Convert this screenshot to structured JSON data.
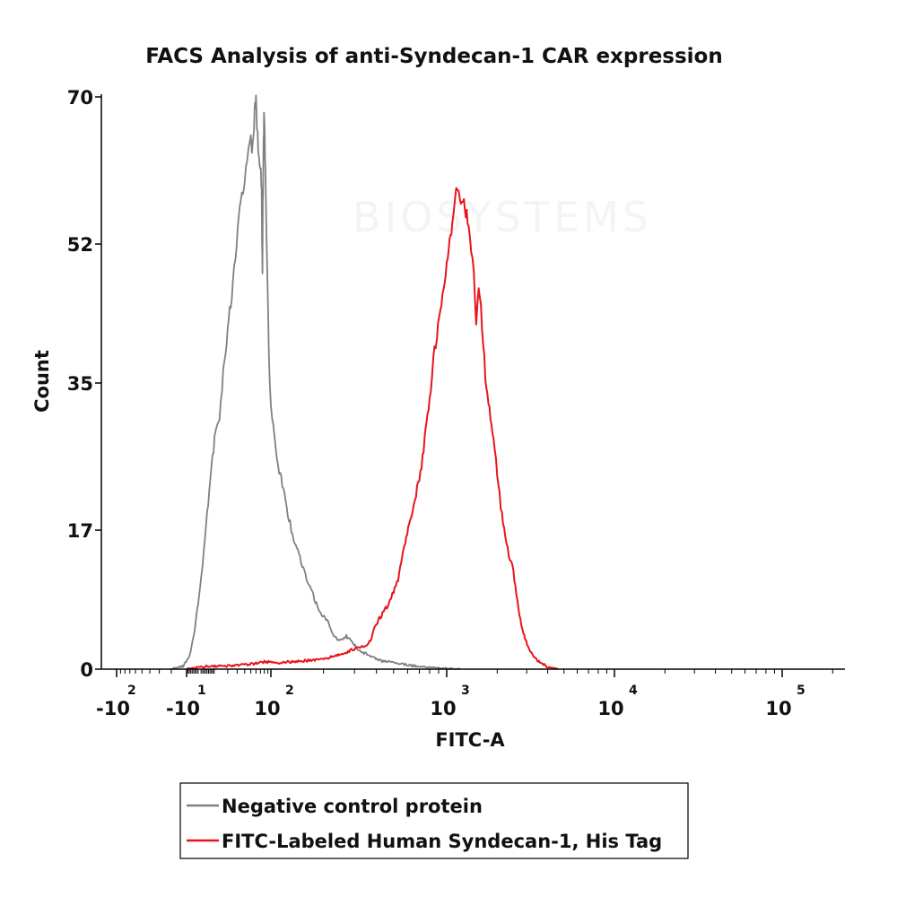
{
  "chart_data": {
    "type": "line",
    "title": "FACS Analysis of anti-Syndecan-1 CAR expression",
    "xlabel": "FITC-A",
    "ylabel": "Count",
    "xscale": "biexponential (logicle)",
    "ylim": [
      0,
      70
    ],
    "y_ticks": [
      "0",
      "17",
      "35",
      "52",
      "70"
    ],
    "x_ticks": [
      {
        "base": "-10",
        "exp": "2",
        "value": -100
      },
      {
        "base": "-10",
        "exp": "1",
        "value": -10
      },
      {
        "base": "10",
        "exp": "2",
        "value": 100
      },
      {
        "base": "10",
        "exp": "3",
        "value": 1000
      },
      {
        "base": "10",
        "exp": "4",
        "value": 10000
      },
      {
        "base": "10",
        "exp": "5",
        "value": 100000
      }
    ],
    "grid": false,
    "legend_position": "bottom",
    "watermark": "BIOSYSTEMS",
    "series": [
      {
        "name": "Negative control protein",
        "color": "#808080",
        "points": [
          [
            -20,
            0
          ],
          [
            -12,
            0.4
          ],
          [
            -8,
            1.5
          ],
          [
            -5,
            4
          ],
          [
            -2,
            8
          ],
          [
            1,
            13
          ],
          [
            4,
            19
          ],
          [
            7,
            25
          ],
          [
            10,
            29
          ],
          [
            13,
            31
          ],
          [
            16,
            36
          ],
          [
            20,
            41
          ],
          [
            24,
            46
          ],
          [
            28,
            50
          ],
          [
            32,
            55
          ],
          [
            36,
            58
          ],
          [
            40,
            60
          ],
          [
            44,
            63
          ],
          [
            48,
            65
          ],
          [
            52,
            64
          ],
          [
            56,
            66
          ],
          [
            58,
            69
          ],
          [
            60,
            70
          ],
          [
            62,
            66
          ],
          [
            65,
            64
          ],
          [
            68,
            62
          ],
          [
            71,
            61
          ],
          [
            73,
            58
          ],
          [
            74,
            53
          ],
          [
            75,
            49
          ],
          [
            76,
            57
          ],
          [
            77,
            60
          ],
          [
            78,
            64
          ],
          [
            79,
            68
          ],
          [
            80,
            67
          ],
          [
            82,
            63
          ],
          [
            84,
            58
          ],
          [
            87,
            52
          ],
          [
            90,
            46
          ],
          [
            93,
            40
          ],
          [
            96,
            35
          ],
          [
            100,
            32
          ],
          [
            105,
            28
          ],
          [
            110,
            25
          ],
          [
            118,
            22
          ],
          [
            125,
            19
          ],
          [
            135,
            16
          ],
          [
            145,
            14
          ],
          [
            160,
            11
          ],
          [
            175,
            9
          ],
          [
            190,
            7
          ],
          [
            210,
            6
          ],
          [
            230,
            4
          ],
          [
            250,
            3.5
          ],
          [
            270,
            4
          ],
          [
            290,
            3.5
          ],
          [
            310,
            2.5
          ],
          [
            340,
            2
          ],
          [
            380,
            1.5
          ],
          [
            430,
            1
          ],
          [
            500,
            0.8
          ],
          [
            600,
            0.5
          ],
          [
            700,
            0.3
          ],
          [
            850,
            0.2
          ],
          [
            1000,
            0.1
          ],
          [
            1200,
            0
          ]
        ]
      },
      {
        "name": "FITC-Labeled Human Syndecan-1, His Tag",
        "color": "#e8141c",
        "points": [
          [
            -10,
            0
          ],
          [
            0,
            0.3
          ],
          [
            20,
            0.4
          ],
          [
            50,
            0.6
          ],
          [
            80,
            0.9
          ],
          [
            110,
            0.8
          ],
          [
            150,
            1
          ],
          [
            200,
            1.2
          ],
          [
            250,
            1.8
          ],
          [
            300,
            2.5
          ],
          [
            340,
            2.8
          ],
          [
            370,
            3.5
          ],
          [
            390,
            5
          ],
          [
            410,
            6
          ],
          [
            440,
            7
          ],
          [
            470,
            8
          ],
          [
            500,
            9.5
          ],
          [
            530,
            11
          ],
          [
            560,
            14
          ],
          [
            590,
            16
          ],
          [
            620,
            18
          ],
          [
            650,
            20
          ],
          [
            680,
            22
          ],
          [
            720,
            25
          ],
          [
            760,
            29
          ],
          [
            800,
            33
          ],
          [
            840,
            38
          ],
          [
            880,
            41
          ],
          [
            920,
            44
          ],
          [
            960,
            46
          ],
          [
            1000,
            49
          ],
          [
            1040,
            52
          ],
          [
            1080,
            55
          ],
          [
            1120,
            57
          ],
          [
            1160,
            59
          ],
          [
            1200,
            58
          ],
          [
            1250,
            57
          ],
          [
            1300,
            56
          ],
          [
            1350,
            54
          ],
          [
            1400,
            51
          ],
          [
            1450,
            48
          ],
          [
            1500,
            43
          ],
          [
            1550,
            46
          ],
          [
            1600,
            44
          ],
          [
            1650,
            40
          ],
          [
            1700,
            36
          ],
          [
            1800,
            32
          ],
          [
            1900,
            28
          ],
          [
            2000,
            24
          ],
          [
            2100,
            20
          ],
          [
            2200,
            17
          ],
          [
            2350,
            14
          ],
          [
            2500,
            12
          ],
          [
            2600,
            9
          ],
          [
            2750,
            6
          ],
          [
            2900,
            4
          ],
          [
            3100,
            2.5
          ],
          [
            3300,
            1.5
          ],
          [
            3600,
            0.8
          ],
          [
            4000,
            0.3
          ],
          [
            4600,
            0
          ]
        ]
      }
    ]
  }
}
